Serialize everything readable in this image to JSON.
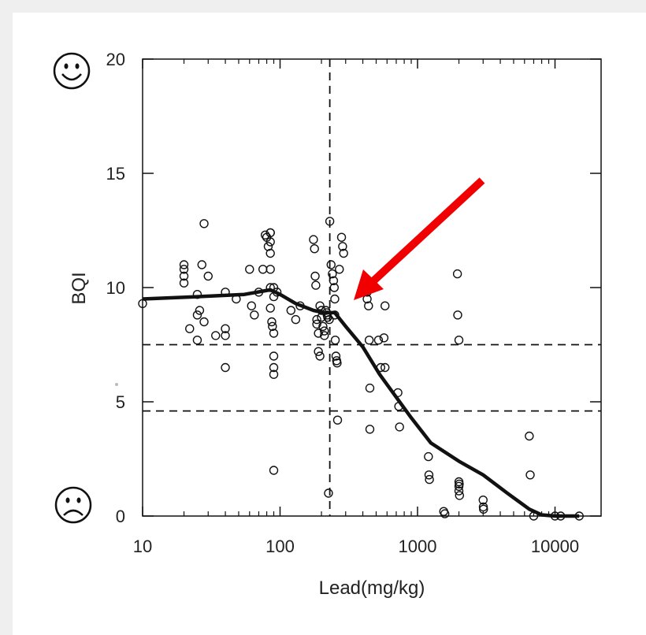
{
  "chart_data": {
    "type": "scatter",
    "xlabel": "Lead(mg/kg)",
    "ylabel": "BQI",
    "xscale": "log",
    "xlim": [
      10,
      16000
    ],
    "ylim": [
      0,
      20
    ],
    "xticks": [
      10,
      100,
      1000,
      10000
    ],
    "yticks": [
      0,
      5,
      10,
      15,
      20
    ],
    "grid": false,
    "reference_lines": {
      "vertical_x": 230,
      "horizontal_y": [
        7.5,
        4.6
      ]
    },
    "icons": {
      "top": "smiley-face-icon",
      "bottom": "frowning-face-icon"
    },
    "annotation": {
      "type": "arrow",
      "color": "#ff0000",
      "points_to": [
        300,
        9.6
      ]
    },
    "series": [
      {
        "kind": "points",
        "x": [
          10,
          20,
          20,
          20,
          20,
          22,
          25,
          25,
          25,
          26,
          27,
          28,
          28,
          30,
          34,
          40,
          40,
          40,
          40,
          48,
          60,
          62,
          65,
          70,
          75,
          78,
          80,
          82,
          85,
          85,
          85,
          85,
          85,
          85,
          85,
          87,
          88,
          90,
          90,
          90,
          90,
          90,
          90,
          90,
          95,
          120,
          130,
          140,
          175,
          178,
          180,
          182,
          185,
          185,
          190,
          190,
          195,
          195,
          200,
          200,
          205,
          210,
          210,
          215,
          218,
          220,
          222,
          225,
          228,
          230,
          235,
          240,
          245,
          248,
          250,
          250,
          252,
          255,
          258,
          260,
          262,
          270,
          280,
          285,
          290,
          430,
          430,
          440,
          445,
          450,
          450,
          520,
          540,
          570,
          580,
          580,
          720,
          730,
          740,
          1200,
          1210,
          1220,
          1550,
          1580,
          1950,
          1960,
          2000,
          2000,
          2000,
          2000,
          2010,
          2020,
          3000,
          3010,
          3020,
          6500,
          6600,
          7000,
          10000,
          11000,
          15000
        ],
        "y": [
          9.3,
          11.0,
          10.8,
          10.5,
          10.2,
          8.2,
          9.7,
          8.8,
          7.7,
          9.0,
          11.0,
          12.8,
          8.5,
          10.5,
          7.9,
          9.8,
          8.2,
          7.9,
          6.5,
          9.5,
          10.8,
          9.2,
          8.8,
          9.8,
          10.8,
          12.3,
          12.2,
          11.8,
          12.4,
          12.4,
          12.0,
          11.5,
          10.8,
          10.0,
          9.1,
          8.5,
          8.3,
          8.0,
          10.0,
          9.6,
          7.0,
          6.5,
          6.2,
          2.0,
          9.8,
          9.0,
          8.6,
          9.2,
          12.1,
          11.7,
          10.5,
          10.1,
          8.6,
          8.4,
          8.0,
          7.2,
          9.2,
          7.0,
          9.0,
          8.7,
          8.3,
          8.1,
          7.9,
          9.0,
          8.9,
          8.8,
          8.7,
          1.0,
          8.6,
          12.9,
          11.0,
          10.6,
          10.3,
          10.0,
          9.5,
          8.8,
          7.7,
          7.0,
          6.8,
          6.7,
          4.2,
          10.8,
          12.2,
          11.8,
          11.5,
          9.8,
          9.5,
          9.2,
          7.7,
          5.6,
          3.8,
          7.7,
          6.5,
          7.8,
          9.2,
          6.5,
          5.4,
          4.8,
          3.9,
          2.6,
          1.8,
          1.6,
          0.2,
          0.1,
          10.6,
          8.8,
          7.7,
          1.5,
          1.3,
          1.1,
          1.4,
          0.9,
          0.7,
          0.4,
          0.3,
          3.5,
          1.8,
          0.0,
          0.0,
          0.0,
          0.0
        ],
        "style": "open-circle"
      },
      {
        "kind": "trend-line",
        "x": [
          10,
          25,
          55,
          85,
          100,
          130,
          175,
          210,
          250,
          300,
          400,
          530,
          700,
          900,
          1250,
          2000,
          3000,
          4500,
          6500,
          8000,
          10000,
          15000
        ],
        "y": [
          9.5,
          9.6,
          9.7,
          9.9,
          9.7,
          9.3,
          9.0,
          8.9,
          8.9,
          8.3,
          7.4,
          6.2,
          5.2,
          4.3,
          3.2,
          2.4,
          1.8,
          1.0,
          0.3,
          0.05,
          0.0,
          0.0
        ]
      }
    ]
  }
}
